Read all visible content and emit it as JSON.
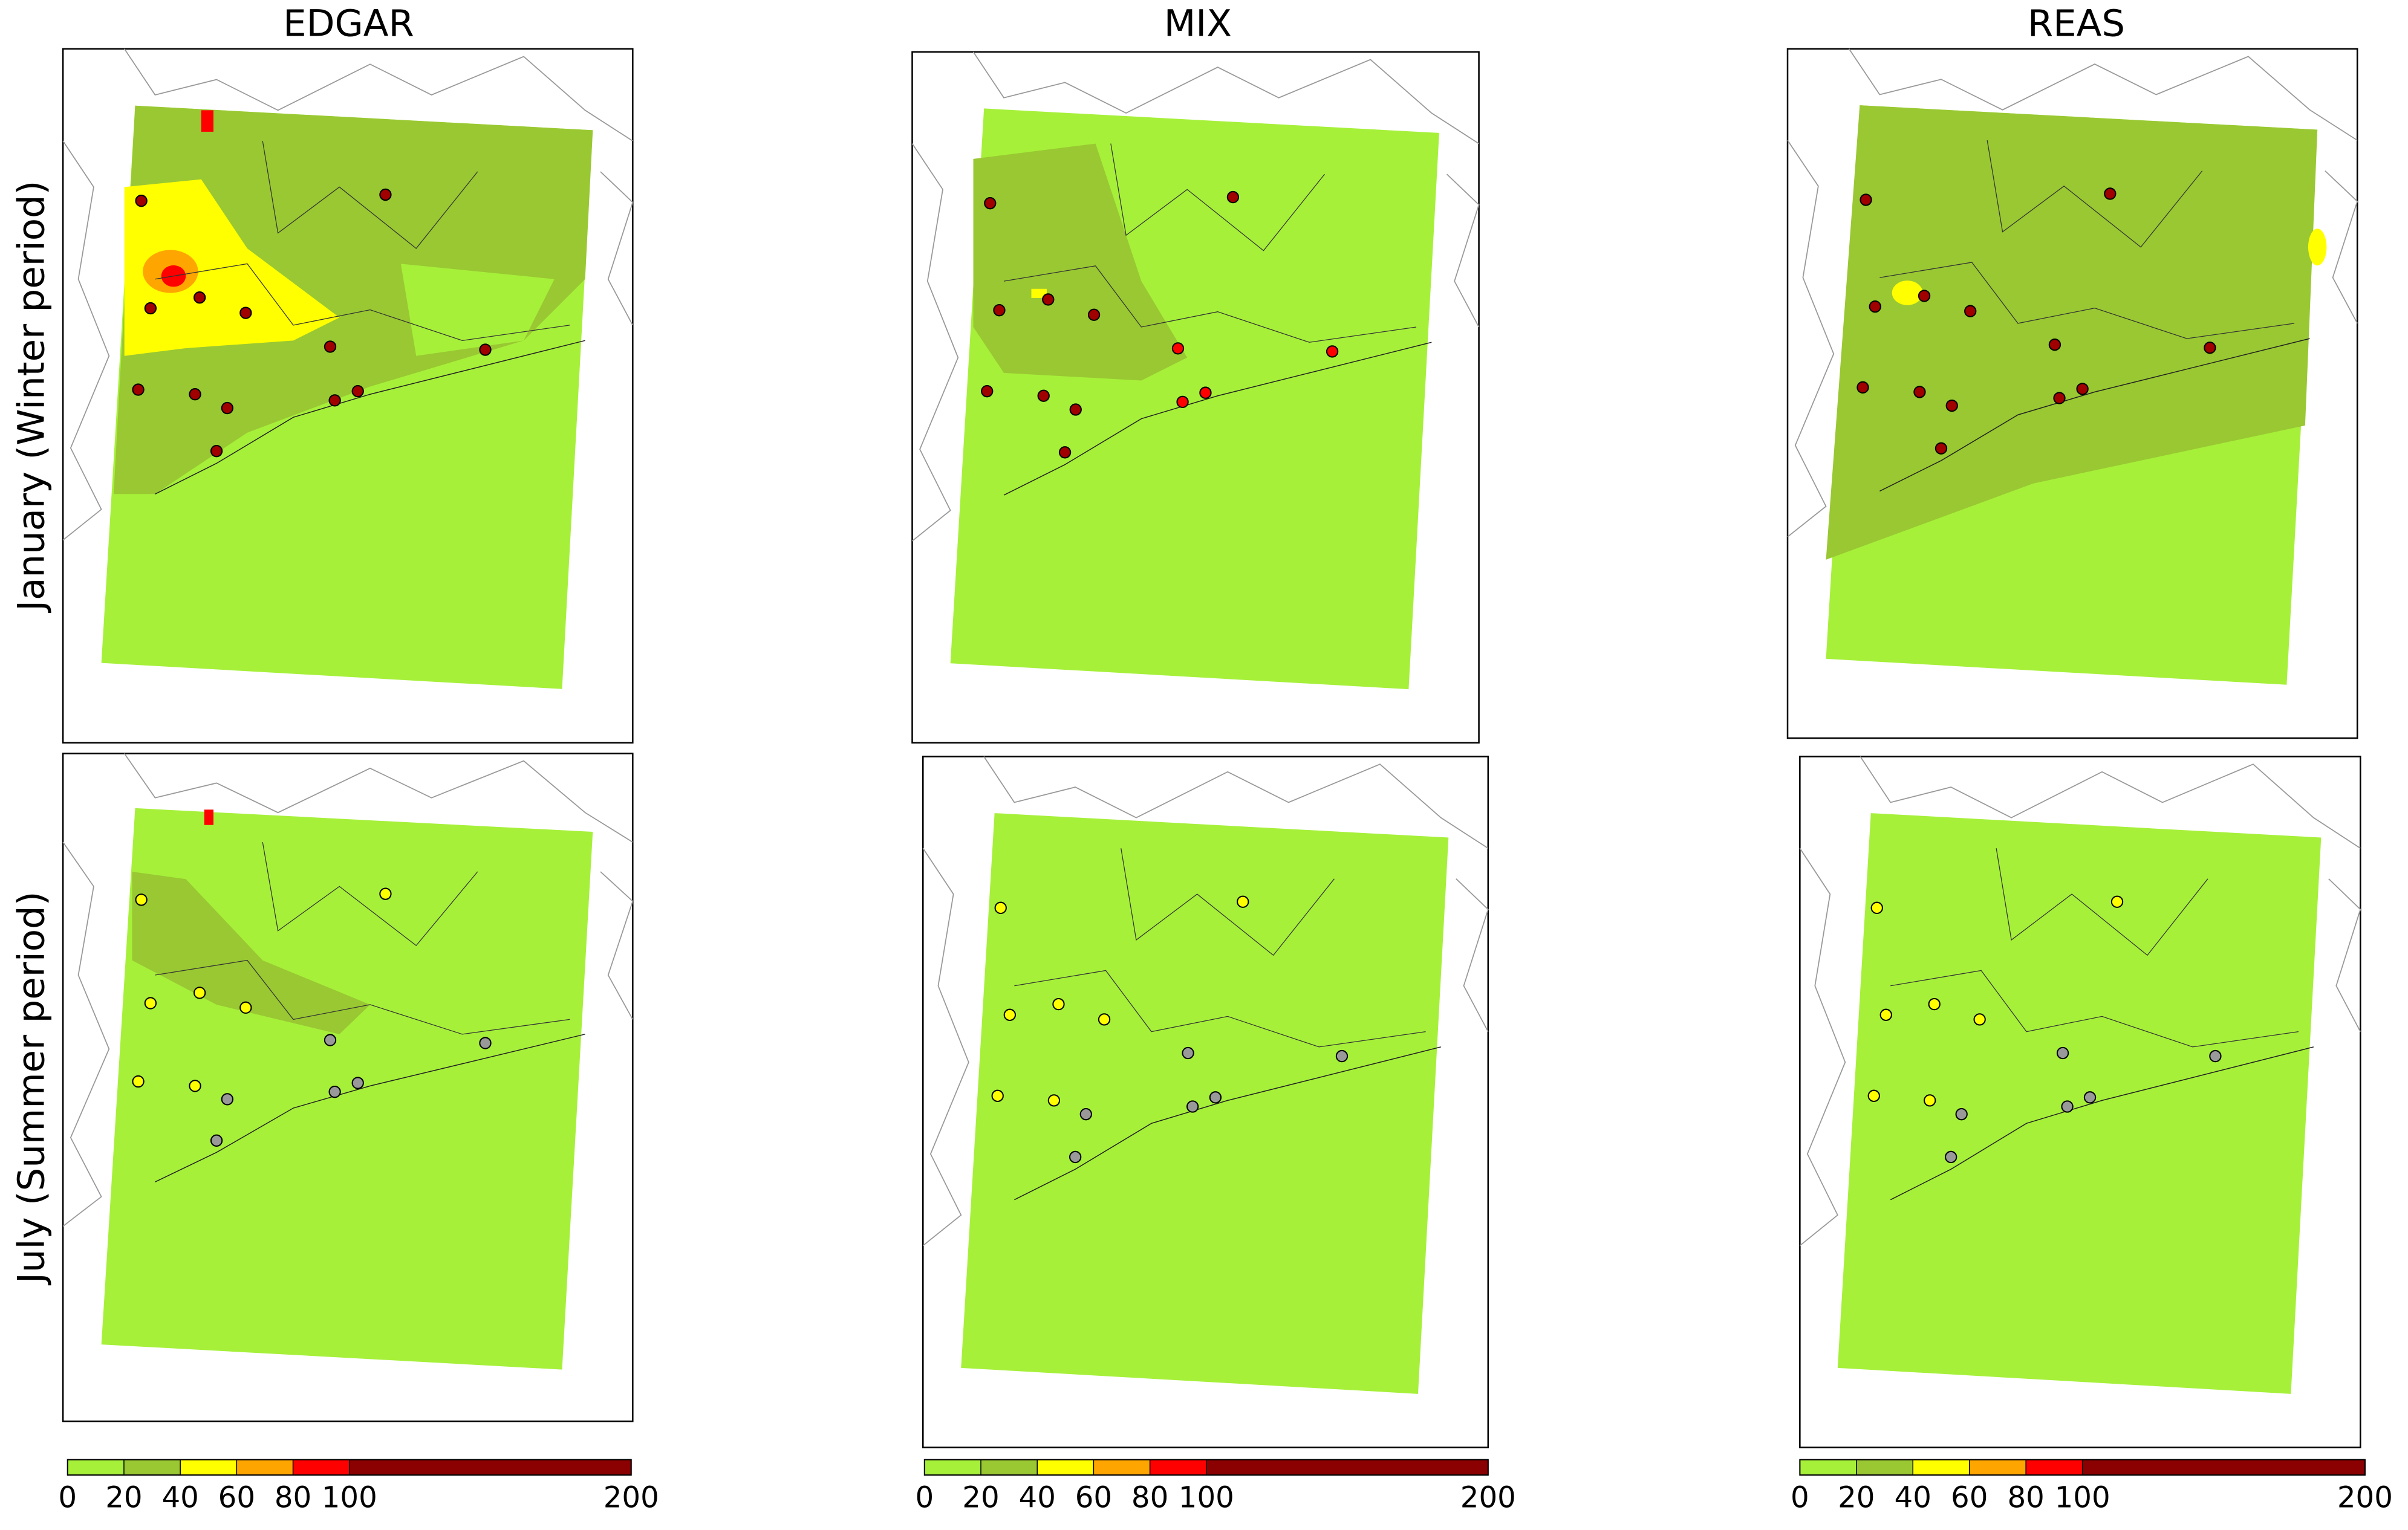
{
  "columns": [
    "EDGAR",
    "MIX",
    "REAS"
  ],
  "rows": [
    "January (Winter period)",
    "July (Summer period)"
  ],
  "colorbar": {
    "lim": [
      0,
      200
    ],
    "ticks": [
      0,
      20,
      40,
      60,
      80,
      100,
      200
    ],
    "colors": [
      "#a6f03a",
      "#99c832",
      "#ffff00",
      "#ffa500",
      "#ff0000",
      "#8b0000"
    ]
  }
}
